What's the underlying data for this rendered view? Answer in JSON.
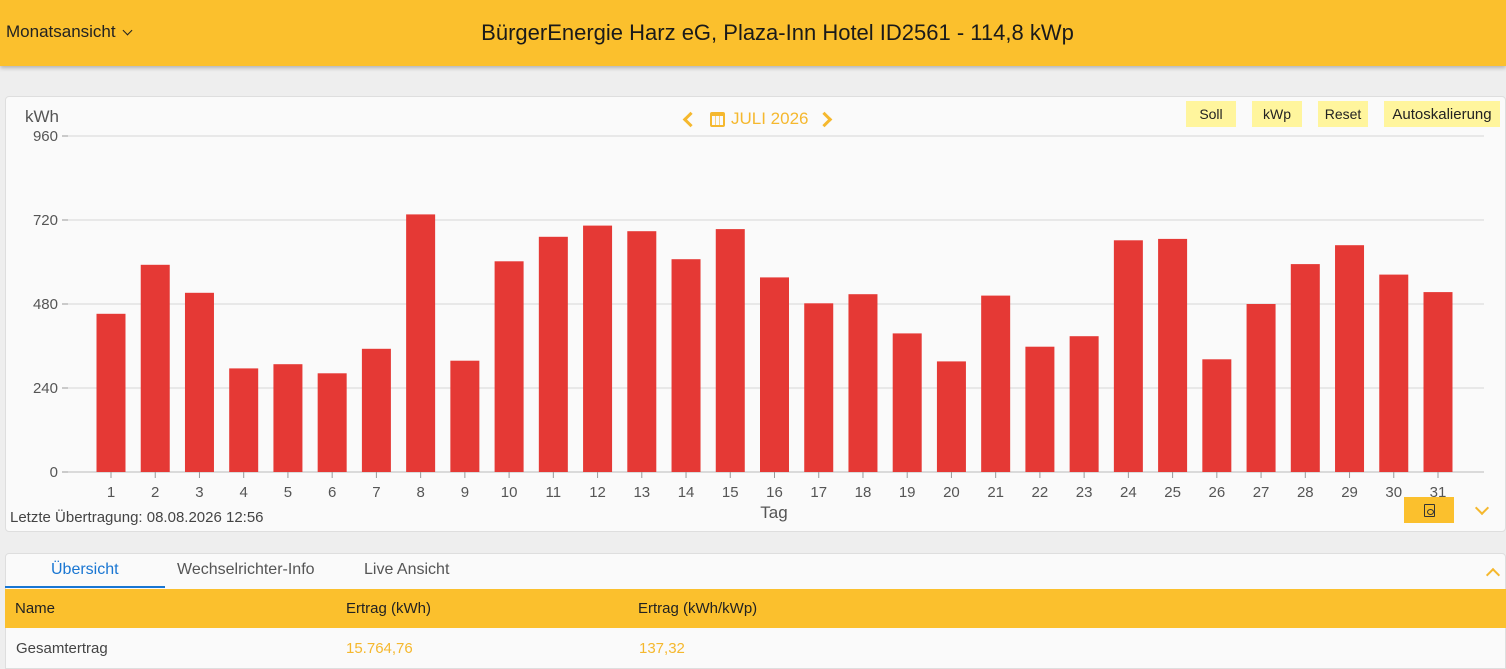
{
  "header": {
    "view_select": "Monatsansicht",
    "title": "BürgerEnergie Harz eG, Plaza-Inn Hotel ID2561 - 114,8 kWp"
  },
  "chart_nav": {
    "month_label": "JULI 2026"
  },
  "chart_buttons": {
    "soll": "Soll",
    "kwp": "kWp",
    "reset": "Reset",
    "autoscale": "Autoskalierung"
  },
  "chart_data": {
    "type": "bar",
    "ylabel": "kWh",
    "xlabel": "Tag",
    "ylim": [
      0,
      960
    ],
    "yticks": [
      "0",
      "240",
      "480",
      "720",
      "960"
    ],
    "grid": true,
    "bar_color": "#e53935",
    "categories": [
      "1",
      "2",
      "3",
      "4",
      "5",
      "6",
      "7",
      "8",
      "9",
      "10",
      "11",
      "12",
      "13",
      "14",
      "15",
      "16",
      "17",
      "18",
      "19",
      "20",
      "21",
      "22",
      "23",
      "24",
      "25",
      "26",
      "27",
      "28",
      "29",
      "30",
      "31"
    ],
    "values": [
      452,
      592,
      512,
      296,
      308,
      282,
      352,
      736,
      318,
      602,
      672,
      704,
      688,
      608,
      694,
      556,
      482,
      508,
      396,
      316,
      504,
      358,
      388,
      662,
      666,
      322,
      480,
      594,
      648,
      564,
      514
    ]
  },
  "chart_footer": {
    "last_transfer": "Letzte Übertragung: 08.08.2026 12:56"
  },
  "tabs": [
    "Übersicht",
    "Wechselrichter-Info",
    "Live Ansicht"
  ],
  "table": {
    "headers": [
      "Name",
      "Ertrag (kWh)",
      "Ertrag (kWh/kWp)"
    ],
    "rows": [
      {
        "name": "Gesamtertrag",
        "ertrag": "15.764,76",
        "spez": "137,32"
      }
    ]
  },
  "colors": {
    "accent": "#fbc02d",
    "accent_text": "#f5b82e",
    "bar": "#e53935",
    "tab_active": "#1976d2"
  }
}
